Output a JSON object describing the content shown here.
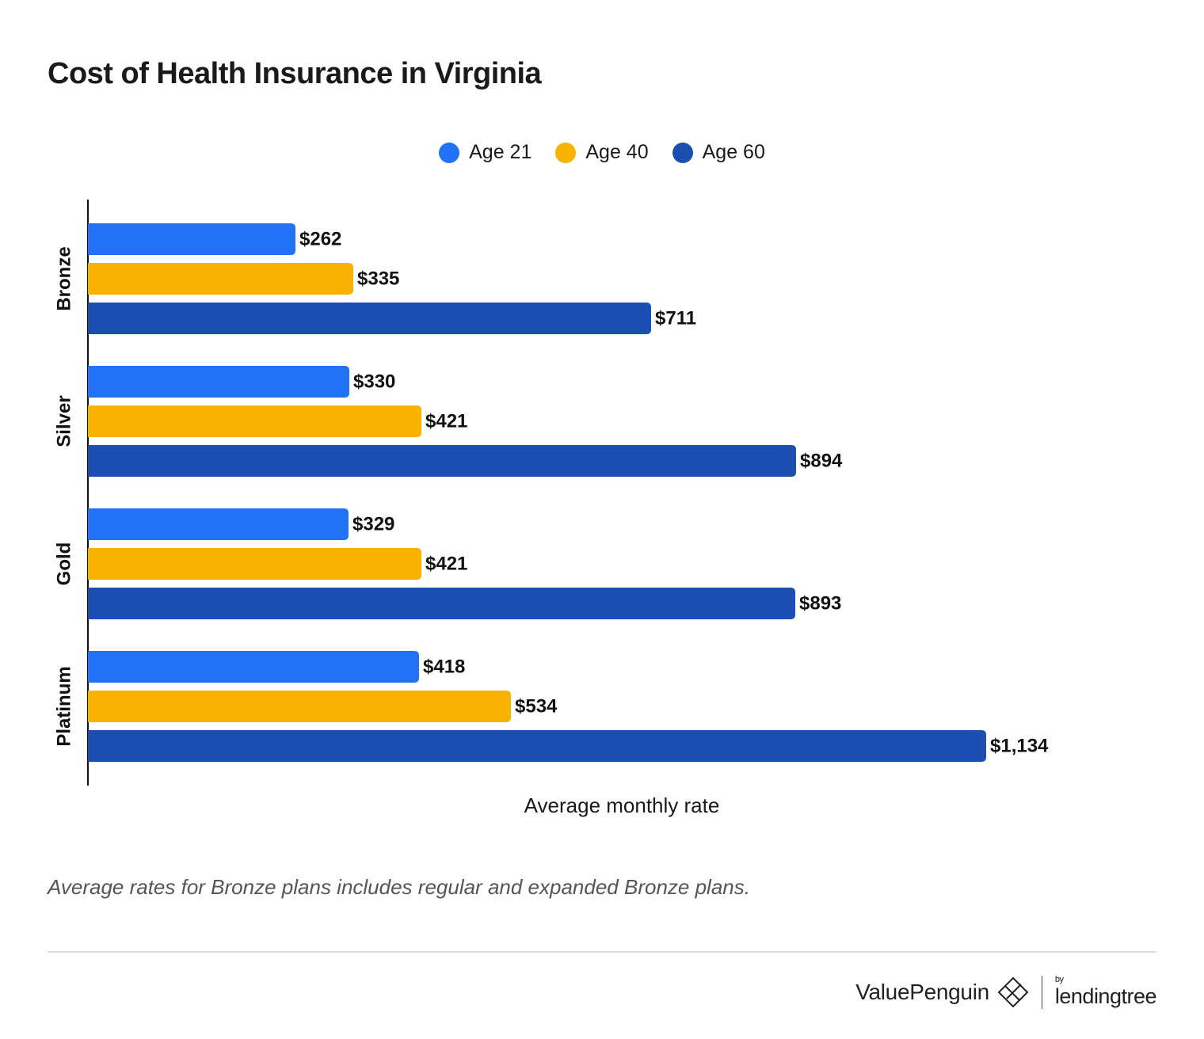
{
  "title": "Cost of Health Insurance in Virginia",
  "footnote": "Average rates for Bronze plans includes regular and expanded Bronze plans.",
  "brand": {
    "name": "ValuePenguin",
    "by": "by",
    "partner": "lendingtree"
  },
  "colors": {
    "age21": "#2272f5",
    "age40": "#f9b200",
    "age60": "#1b4fb2"
  },
  "chart_data": {
    "type": "bar",
    "orientation": "horizontal",
    "title": "Cost of Health Insurance in Virginia",
    "xlabel": "Average monthly rate",
    "ylabel": "",
    "legend_position": "top-center",
    "grid": false,
    "categories": [
      "Bronze",
      "Silver",
      "Gold",
      "Platinum"
    ],
    "series": [
      {
        "name": "Age 21",
        "values": [
          262,
          330,
          329,
          418
        ],
        "labels": [
          "$262",
          "$330",
          "$329",
          "$418"
        ],
        "color": "#2272f5"
      },
      {
        "name": "Age 40",
        "values": [
          335,
          421,
          421,
          534
        ],
        "labels": [
          "$335",
          "$421",
          "$421",
          "$534"
        ],
        "color": "#f9b200"
      },
      {
        "name": "Age 60",
        "values": [
          711,
          894,
          893,
          1134
        ],
        "labels": [
          "$711",
          "$894",
          "$893",
          "$1,134"
        ],
        "color": "#1b4fb2"
      }
    ],
    "xlim": [
      0,
      1290
    ]
  }
}
